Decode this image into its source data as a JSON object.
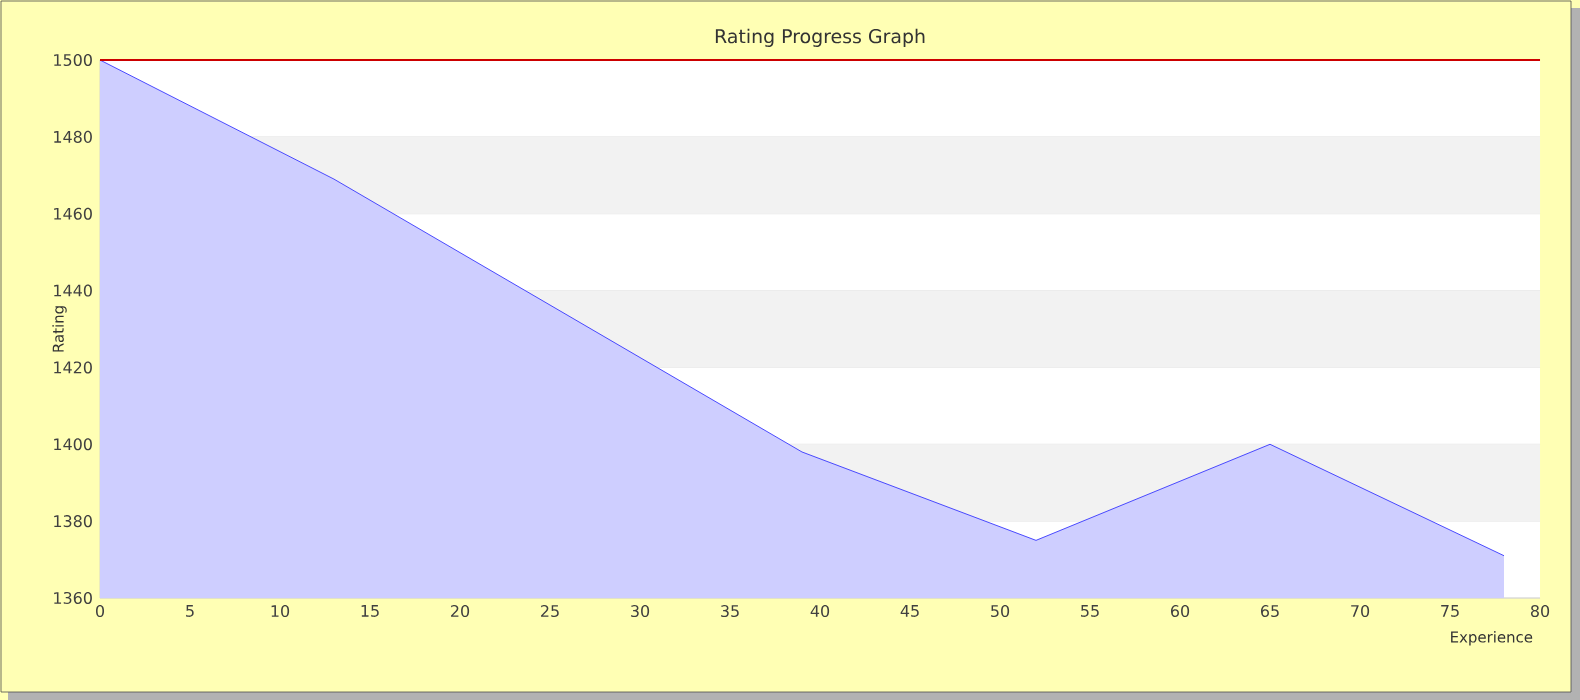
{
  "chart_data": {
    "type": "area",
    "title": "Rating Progress Graph",
    "xlabel": "Experience",
    "ylabel": "Rating",
    "x": [
      0,
      13,
      39,
      52,
      65,
      78
    ],
    "values": [
      1500,
      1469,
      1398,
      1375,
      1400,
      1371
    ],
    "color": "#2222ff",
    "xlim": [
      0,
      80
    ],
    "ylim": [
      1360,
      1500
    ],
    "xticks": [
      0,
      5,
      10,
      15,
      20,
      25,
      30,
      35,
      40,
      45,
      50,
      55,
      60,
      65,
      70,
      75,
      80
    ],
    "yticks": [
      1360,
      1380,
      1400,
      1420,
      1440,
      1460,
      1480,
      1500
    ],
    "grid": "y",
    "ref_lines": [
      {
        "axis": "y",
        "value": 1500,
        "color": "#cc0000"
      }
    ]
  }
}
